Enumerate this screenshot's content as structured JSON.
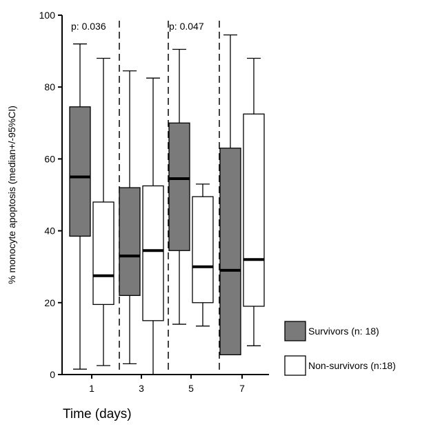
{
  "chart_data": {
    "type": "boxplot",
    "xlabel": "Time (days)",
    "ylabel": "% monocyte apoptosis (median+/-95%CI)",
    "ylim": [
      0,
      100
    ],
    "yticks": [
      "0",
      "20",
      "40",
      "60",
      "80",
      "100"
    ],
    "categories": [
      "1",
      "3",
      "5",
      "7"
    ],
    "grid": false,
    "legend_position": "bottom-right",
    "series": [
      {
        "name": "Survivors (n: 18)",
        "color": "#7a7a7a",
        "boxes": [
          {
            "min": 1.5,
            "q1": 38.5,
            "median": 55,
            "q3": 74.5,
            "max": 92
          },
          {
            "min": 3,
            "q1": 22,
            "median": 33,
            "q3": 52,
            "max": 84.5
          },
          {
            "min": 14,
            "q1": 34.5,
            "median": 54.5,
            "q3": 70,
            "max": 90.5
          },
          {
            "min": 5.5,
            "q1": 5.5,
            "median": 29,
            "q3": 63,
            "max": 94.5
          }
        ]
      },
      {
        "name": "Non-survivors (n:18)",
        "color": "#ffffff",
        "boxes": [
          {
            "min": 2.5,
            "q1": 19.5,
            "median": 27.5,
            "q3": 48,
            "max": 88
          },
          {
            "min": 0,
            "q1": 15,
            "median": 34.5,
            "q3": 52.5,
            "max": 82.5
          },
          {
            "min": 13.5,
            "q1": 20,
            "median": 30,
            "q3": 49.5,
            "max": 53
          },
          {
            "min": 8,
            "q1": 19,
            "median": 32,
            "q3": 72.5,
            "max": 88
          }
        ]
      }
    ],
    "annotations": [
      "p: 0.036",
      "p: 0.047"
    ]
  }
}
